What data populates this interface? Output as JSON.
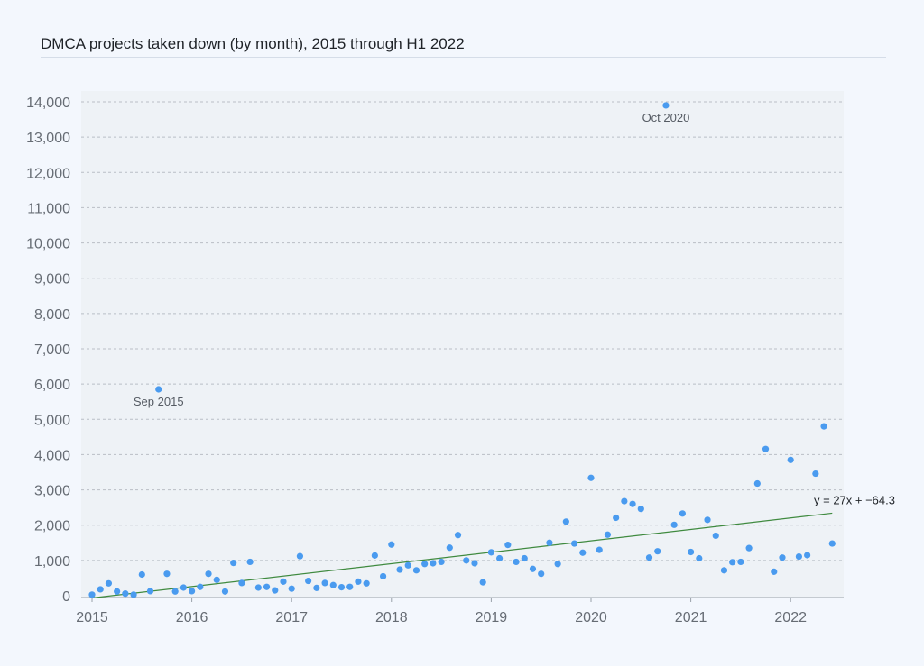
{
  "chart_data": {
    "type": "scatter",
    "title": "DMCA projects taken down (by month), 2015 through H1 2022",
    "xlabel": "",
    "ylabel": "",
    "x_ticks": [
      "2015",
      "2016",
      "2017",
      "2018",
      "2019",
      "2020",
      "2021",
      "2022"
    ],
    "y_ticks": [
      "0",
      "1,000",
      "2,000",
      "3,000",
      "4,000",
      "5,000",
      "6,000",
      "7,000",
      "8,000",
      "9,000",
      "10,000",
      "11,000",
      "12,000",
      "13,000",
      "14,000"
    ],
    "ylim": [
      0,
      14000
    ],
    "xlim": [
      "2015-01",
      "2022-07"
    ],
    "grid": true,
    "colors": {
      "points": "#4a9bef",
      "trendline": "#3f8a3f",
      "plot_bg": "#eef2f6"
    },
    "series": [
      {
        "x": [
          "2015-01",
          "2015-02",
          "2015-03",
          "2015-04",
          "2015-05",
          "2015-06",
          "2015-07",
          "2015-08",
          "2015-09",
          "2015-10",
          "2015-11",
          "2015-12",
          "2016-01",
          "2016-02",
          "2016-03",
          "2016-04",
          "2016-05",
          "2016-06",
          "2016-07",
          "2016-08",
          "2016-09",
          "2016-10",
          "2016-11",
          "2016-12",
          "2017-01",
          "2017-02",
          "2017-03",
          "2017-04",
          "2017-05",
          "2017-06",
          "2017-07",
          "2017-08",
          "2017-09",
          "2017-10",
          "2017-11",
          "2017-12",
          "2018-01",
          "2018-02",
          "2018-03",
          "2018-04",
          "2018-05",
          "2018-06",
          "2018-07",
          "2018-08",
          "2018-09",
          "2018-10",
          "2018-11",
          "2018-12",
          "2019-01",
          "2019-02",
          "2019-03",
          "2019-04",
          "2019-05",
          "2019-06",
          "2019-07",
          "2019-08",
          "2019-09",
          "2019-10",
          "2019-11",
          "2019-12",
          "2020-01",
          "2020-02",
          "2020-03",
          "2020-04",
          "2020-05",
          "2020-06",
          "2020-07",
          "2020-08",
          "2020-09",
          "2020-10",
          "2020-11",
          "2020-12",
          "2021-01",
          "2021-02",
          "2021-03",
          "2021-04",
          "2021-05",
          "2021-06",
          "2021-07",
          "2021-08",
          "2021-09",
          "2021-10",
          "2021-11",
          "2021-12",
          "2022-01",
          "2022-02",
          "2022-03",
          "2022-04",
          "2022-05",
          "2022-06"
        ],
        "y": [
          30,
          180,
          350,
          120,
          60,
          30,
          600,
          130,
          5850,
          620,
          120,
          230,
          130,
          250,
          620,
          450,
          120,
          930,
          360,
          960,
          230,
          250,
          150,
          400,
          200,
          1120,
          420,
          220,
          360,
          300,
          240,
          250,
          400,
          350,
          1140,
          550,
          1450,
          740,
          860,
          720,
          900,
          920,
          960,
          1360,
          1720,
          1000,
          920,
          380,
          1230,
          1060,
          1440,
          960,
          1060,
          760,
          620,
          1500,
          900,
          2100,
          1480,
          1220,
          3340,
          1300,
          1730,
          2210,
          2680,
          2600,
          2460,
          1080,
          1260,
          13900,
          2010,
          2330,
          1240,
          1060,
          2150,
          1700,
          720,
          950,
          960,
          1350,
          3180,
          4160,
          680,
          1080,
          3850,
          1110,
          1150,
          3460,
          4800,
          1480
        ]
      }
    ],
    "trendline": {
      "slope": 27,
      "intercept": -64.3,
      "label": "y = 27x + −64.3"
    },
    "annotations": [
      {
        "text": "Sep 2015",
        "x": "2015-09",
        "y": 5850
      },
      {
        "text": "Oct 2020",
        "x": "2020-10",
        "y": 13900
      }
    ]
  }
}
